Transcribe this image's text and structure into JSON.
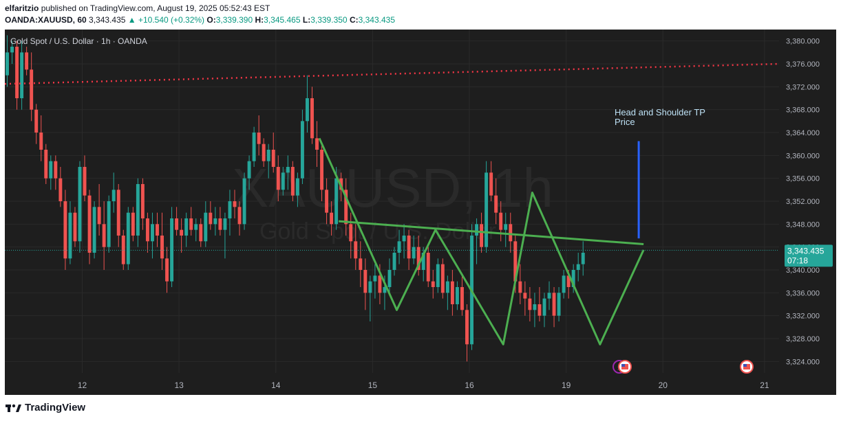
{
  "header": {
    "publisher": "elfaritzio",
    "published_text": "published on TradingView.com, August 19, 2025 05:52:43 EST"
  },
  "ohlc_bar": {
    "symbol": "OANDA:XAUUSD, 60",
    "last": "3,343.435",
    "change": "▲ +10.540 (+0.32%)",
    "open_label": "O:",
    "open": "3,339.390",
    "high_label": "H:",
    "high": "3,345.465",
    "low_label": "L:",
    "low": "3,339.350",
    "close_label": "C:",
    "close": "3,343.435"
  },
  "legend": "Gold Spot / U.S. Dollar · 1h · OANDA",
  "watermark": {
    "symbol": "XAUUSD, 1h",
    "name": "Gold Spot / U.S. Dollar"
  },
  "price_tag": {
    "price": "3,343.435",
    "countdown": "07:18"
  },
  "annotation": {
    "line1": "Head and Shoulder TP",
    "line2": "Price"
  },
  "footer": {
    "brand": "TradingView"
  },
  "colors": {
    "up": "#26a69a",
    "down": "#ef5350",
    "pattern": "#4caf50",
    "target": "#2962ff",
    "resistance": "#f23645",
    "background": "#1e1e1e",
    "grid": "#2a2a2a"
  },
  "chart_data": {
    "type": "candlestick",
    "ylim": [
      3322,
      3382
    ],
    "y_ticks": [
      3324,
      3328,
      3332,
      3336,
      3340,
      3344,
      3348,
      3352,
      3356,
      3360,
      3364,
      3368,
      3372,
      3376,
      3380
    ],
    "y_tick_labels": [
      "3,324.000",
      "3,328.000",
      "3,332.000",
      "3,336.000",
      "3,340.000",
      "3,344.000",
      "3,348.000",
      "3,352.000",
      "3,356.000",
      "3,360.000",
      "3,364.000",
      "3,368.000",
      "3,372.000",
      "3,376.000",
      "3,380.000"
    ],
    "x_range": [
      0,
      160
    ],
    "x_ticks": [
      {
        "x": 16,
        "label": "12"
      },
      {
        "x": 36,
        "label": "13"
      },
      {
        "x": 56,
        "label": "14"
      },
      {
        "x": 76,
        "label": "15"
      },
      {
        "x": 96,
        "label": "16"
      },
      {
        "x": 116,
        "label": "19"
      },
      {
        "x": 136,
        "label": "20"
      },
      {
        "x": 157,
        "label": "21"
      }
    ],
    "candles": [
      [
        3374,
        3381,
        3372,
        3378
      ],
      [
        3378,
        3380,
        3376,
        3379
      ],
      [
        3379,
        3380,
        3368,
        3370
      ],
      [
        3370,
        3380,
        3368,
        3378
      ],
      [
        3378,
        3379,
        3374,
        3375
      ],
      [
        3375,
        3378,
        3366,
        3368
      ],
      [
        3368,
        3369,
        3362,
        3364
      ],
      [
        3364,
        3367,
        3359,
        3361
      ],
      [
        3361,
        3362,
        3355,
        3356
      ],
      [
        3356,
        3360,
        3354,
        3359
      ],
      [
        3359,
        3360,
        3354,
        3356
      ],
      [
        3356,
        3358,
        3351,
        3352
      ],
      [
        3352,
        3354,
        3340,
        3342
      ],
      [
        3342,
        3352,
        3341,
        3350
      ],
      [
        3350,
        3351,
        3344,
        3345
      ],
      [
        3345,
        3359,
        3343,
        3358
      ],
      [
        3358,
        3360,
        3352,
        3353
      ],
      [
        3353,
        3354,
        3341,
        3343
      ],
      [
        3343,
        3352,
        3342,
        3351
      ],
      [
        3351,
        3355,
        3346,
        3348
      ],
      [
        3348,
        3352,
        3340,
        3344
      ],
      [
        3344,
        3353,
        3343,
        3352
      ],
      [
        3352,
        3357,
        3350,
        3354
      ],
      [
        3354,
        3355,
        3344,
        3346
      ],
      [
        3346,
        3347,
        3340,
        3341
      ],
      [
        3341,
        3351,
        3340,
        3350
      ],
      [
        3350,
        3351,
        3345,
        3346
      ],
      [
        3346,
        3356,
        3344,
        3355
      ],
      [
        3355,
        3356,
        3347,
        3349
      ],
      [
        3349,
        3350,
        3343,
        3345
      ],
      [
        3345,
        3350,
        3342,
        3348
      ],
      [
        3348,
        3350,
        3344,
        3346
      ],
      [
        3346,
        3350,
        3340,
        3342
      ],
      [
        3342,
        3344,
        3336,
        3338
      ],
      [
        3338,
        3351,
        3337,
        3349
      ],
      [
        3349,
        3351,
        3346,
        3347
      ],
      [
        3347,
        3349,
        3343,
        3346
      ],
      [
        3346,
        3350,
        3344,
        3349
      ],
      [
        3349,
        3351,
        3346,
        3347
      ],
      [
        3347,
        3349,
        3345,
        3348
      ],
      [
        3348,
        3349,
        3344,
        3345
      ],
      [
        3345,
        3352,
        3344,
        3350
      ],
      [
        3350,
        3352,
        3347,
        3348
      ],
      [
        3348,
        3351,
        3346,
        3349
      ],
      [
        3349,
        3351,
        3346,
        3347
      ],
      [
        3347,
        3350,
        3342,
        3349
      ],
      [
        3349,
        3354,
        3346,
        3352
      ],
      [
        3352,
        3354,
        3349,
        3351
      ],
      [
        3351,
        3352,
        3346,
        3348
      ],
      [
        3348,
        3357,
        3347,
        3356
      ],
      [
        3356,
        3360,
        3354,
        3359
      ],
      [
        3359,
        3365,
        3358,
        3364
      ],
      [
        3364,
        3367,
        3360,
        3362
      ],
      [
        3362,
        3363,
        3358,
        3359
      ],
      [
        3359,
        3362,
        3356,
        3361
      ],
      [
        3361,
        3364,
        3357,
        3358
      ],
      [
        3358,
        3360,
        3352,
        3354
      ],
      [
        3354,
        3358,
        3353,
        3357
      ],
      [
        3357,
        3360,
        3354,
        3358
      ],
      [
        3358,
        3359,
        3352,
        3353
      ],
      [
        3353,
        3357,
        3351,
        3356
      ],
      [
        3356,
        3368,
        3355,
        3366
      ],
      [
        3366,
        3374,
        3364,
        3370
      ],
      [
        3370,
        3372,
        3362,
        3363
      ],
      [
        3363,
        3366,
        3358,
        3361
      ],
      [
        3361,
        3362,
        3352,
        3354
      ],
      [
        3354,
        3356,
        3348,
        3350
      ],
      [
        3350,
        3352,
        3346,
        3348
      ],
      [
        3348,
        3358,
        3347,
        3356
      ],
      [
        3356,
        3357,
        3352,
        3354
      ],
      [
        3354,
        3356,
        3346,
        3348
      ],
      [
        3348,
        3350,
        3342,
        3345
      ],
      [
        3345,
        3348,
        3340,
        3342
      ],
      [
        3342,
        3345,
        3337,
        3340
      ],
      [
        3340,
        3342,
        3333,
        3336
      ],
      [
        3336,
        3339,
        3331,
        3338
      ],
      [
        3338,
        3341,
        3335,
        3339
      ],
      [
        3339,
        3341,
        3334,
        3336
      ],
      [
        3336,
        3339,
        3333,
        3337
      ],
      [
        3337,
        3342,
        3336,
        3340
      ],
      [
        3340,
        3344,
        3339,
        3343
      ],
      [
        3343,
        3347,
        3341,
        3345
      ],
      [
        3345,
        3348,
        3342,
        3346
      ],
      [
        3346,
        3347,
        3340,
        3342
      ],
      [
        3342,
        3346,
        3341,
        3344
      ],
      [
        3344,
        3346,
        3339,
        3340
      ],
      [
        3340,
        3344,
        3338,
        3343
      ],
      [
        3343,
        3344,
        3337,
        3338
      ],
      [
        3338,
        3340,
        3335,
        3337
      ],
      [
        3337,
        3342,
        3336,
        3341
      ],
      [
        3341,
        3342,
        3335,
        3336
      ],
      [
        3336,
        3339,
        3333,
        3338
      ],
      [
        3338,
        3340,
        3332,
        3334
      ],
      [
        3334,
        3338,
        3333,
        3337
      ],
      [
        3337,
        3339,
        3332,
        3333
      ],
      [
        3333,
        3334,
        3324,
        3327
      ],
      [
        3327,
        3348,
        3326,
        3346
      ],
      [
        3346,
        3349,
        3341,
        3348
      ],
      [
        3348,
        3350,
        3343,
        3344
      ],
      [
        3344,
        3359,
        3343,
        3357
      ],
      [
        3357,
        3359,
        3352,
        3353
      ],
      [
        3353,
        3356,
        3348,
        3350
      ],
      [
        3350,
        3352,
        3345,
        3347
      ],
      [
        3347,
        3350,
        3344,
        3348
      ],
      [
        3348,
        3350,
        3343,
        3345
      ],
      [
        3345,
        3346,
        3336,
        3338
      ],
      [
        3338,
        3341,
        3334,
        3336
      ],
      [
        3336,
        3338,
        3332,
        3335
      ],
      [
        3335,
        3337,
        3331,
        3333
      ],
      [
        3333,
        3336,
        3330,
        3334
      ],
      [
        3334,
        3337,
        3331,
        3332
      ],
      [
        3332,
        3336,
        3330,
        3335
      ],
      [
        3335,
        3338,
        3333,
        3336
      ],
      [
        3336,
        3337,
        3330,
        3332
      ],
      [
        3332,
        3337,
        3331,
        3336
      ],
      [
        3336,
        3340,
        3335,
        3339
      ],
      [
        3339,
        3340,
        3335,
        3337
      ],
      [
        3337,
        3341,
        3336,
        3340
      ],
      [
        3340,
        3343,
        3338,
        3341
      ],
      [
        3341,
        3345,
        3339,
        3343
      ]
    ],
    "resistance_line": {
      "points": [
        [
          0,
          3372.5
        ],
        [
          160,
          3376
        ]
      ],
      "style": "dotted"
    },
    "pattern_lines": [
      {
        "name": "neckline",
        "points": [
          [
            69,
            3348.5
          ],
          [
            132,
            3344.5
          ]
        ]
      },
      {
        "name": "zigzag",
        "points": [
          [
            65,
            3363
          ],
          [
            81,
            3333
          ],
          [
            89,
            3347
          ],
          [
            103,
            3327
          ],
          [
            109,
            3353.5
          ],
          [
            123,
            3327
          ],
          [
            132,
            3343.5
          ]
        ]
      }
    ],
    "target_line": {
      "points": [
        [
          131,
          3345.5
        ],
        [
          131,
          3362.5
        ]
      ]
    },
    "annotation_at": [
      126,
      3367
    ],
    "last_price": 3343.435
  }
}
